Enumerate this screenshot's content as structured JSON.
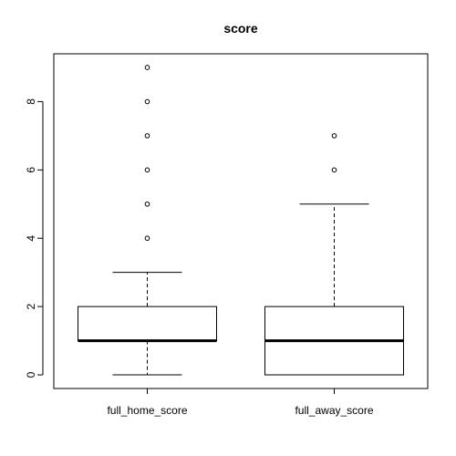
{
  "chart_data": {
    "type": "boxplot",
    "title": "score",
    "xlabel": "",
    "ylabel": "",
    "ylim": [
      -0.4,
      9.4
    ],
    "yticks": [
      0,
      2,
      4,
      6,
      8
    ],
    "grid": false,
    "categories": [
      "full_home_score",
      "full_away_score"
    ],
    "boxes": [
      {
        "name": "full_home_score",
        "whisker_low": 0,
        "q1": 1,
        "median": 1,
        "q3": 2,
        "whisker_high": 3,
        "outliers": [
          4,
          5,
          6,
          7,
          8,
          9
        ]
      },
      {
        "name": "full_away_score",
        "whisker_low": 0,
        "q1": 0,
        "median": 1,
        "q3": 2,
        "whisker_high": 5,
        "outliers": [
          6,
          7
        ]
      }
    ]
  }
}
